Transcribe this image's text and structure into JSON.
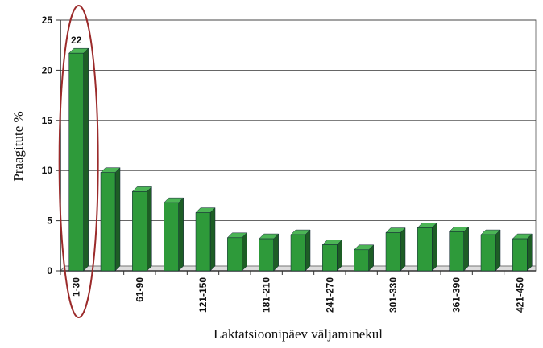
{
  "chart_data": {
    "type": "bar",
    "xlabel": "Laktatsioonipäev väljaminekul",
    "ylabel": "Praagitute %",
    "categories": [
      "1-30",
      null,
      "61-90",
      null,
      "121-150",
      null,
      "181-210",
      null,
      "241-270",
      null,
      "301-330",
      null,
      "361-390",
      null,
      "421-450"
    ],
    "values": [
      21.7,
      9.8,
      7.9,
      6.8,
      5.8,
      3.3,
      3.2,
      3.6,
      2.6,
      2.1,
      3.8,
      4.3,
      3.9,
      3.6,
      3.2
    ],
    "value_labels": [
      "22",
      null,
      null,
      null,
      null,
      null,
      null,
      null,
      null,
      null,
      null,
      null,
      null,
      null,
      null
    ],
    "color": "#2e9a3a",
    "ylim": [
      0,
      25
    ],
    "yticks": [
      0,
      5,
      10,
      15,
      20,
      25
    ],
    "grid": true
  }
}
